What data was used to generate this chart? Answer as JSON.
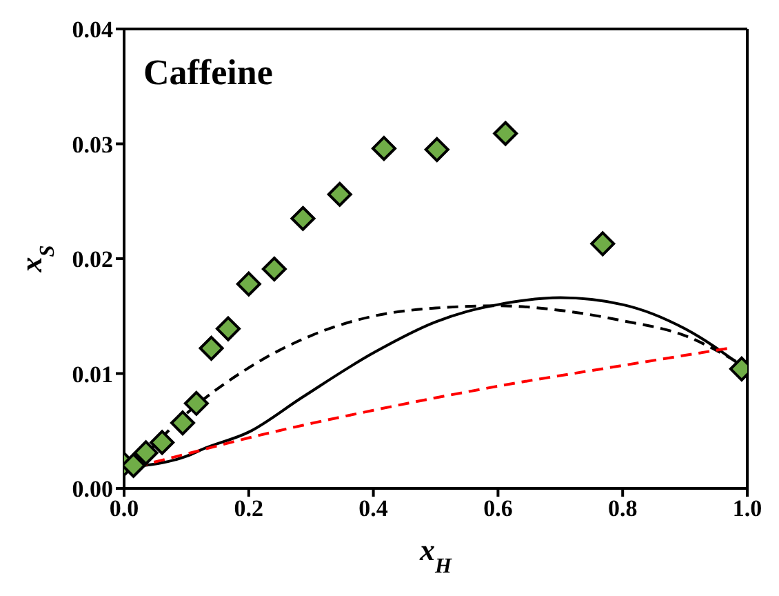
{
  "chart_data": {
    "type": "scatter",
    "annotations": [
      "Caffeine"
    ],
    "xlabel": "x$_{H}$",
    "ylabel": "x$_{S}$",
    "xlim": [
      0,
      1
    ],
    "xticks": [
      {
        "value": 0,
        "label": "0.0"
      },
      {
        "value": 0.2,
        "label": "0.2"
      },
      {
        "value": 0.4,
        "label": "0.4"
      },
      {
        "value": 0.6,
        "label": "0.6"
      },
      {
        "value": 0.8,
        "label": "0.8"
      },
      {
        "value": 1,
        "label": "1.0"
      }
    ],
    "ylim": [
      0,
      0.04
    ],
    "yticks": [
      {
        "value": 0,
        "label": "0.00"
      },
      {
        "value": 0.01,
        "label": "0.01"
      },
      {
        "value": 0.02,
        "label": "0.02"
      },
      {
        "value": 0.03,
        "label": "0.03"
      },
      {
        "value": 0.04,
        "label": "0.04"
      }
    ],
    "grid": false,
    "series": [
      {
        "color": "#70ad47",
        "marker": "diamond",
        "x": [
          0,
          0.015,
          0.035,
          0.061,
          0.094,
          0.116,
          0.14,
          0.167,
          0.2,
          0.241,
          0.287,
          0.346,
          0.417,
          0.502,
          0.612,
          0.768,
          0.991
        ],
        "values": [
          0.0021,
          0.002,
          0.0031,
          0.004,
          0.0057,
          0.0074,
          0.0122,
          0.0139,
          0.0178,
          0.0191,
          0.0235,
          0.0256,
          0.0296,
          0.0295,
          0.0309,
          0.0213,
          0.0104
        ]
      },
      {
        "type": "line",
        "color": "#000000",
        "line_style": "solid",
        "marker": "none",
        "x": [
          0.02,
          0.1,
          0.13,
          0.2,
          0.285,
          0.4,
          0.5,
          0.55,
          0.6,
          0.7,
          0.8,
          0.9,
          0.99
        ],
        "values": [
          0.0019,
          0.0028,
          0.0035,
          0.0049,
          0.0079,
          0.0118,
          0.0145,
          0.0154,
          0.016,
          0.0166,
          0.016,
          0.0139,
          0.0107
        ]
      },
      {
        "type": "line",
        "color": "#000000",
        "line_style": "dashed",
        "marker": "none",
        "x": [
          0.02,
          0.1,
          0.2,
          0.3,
          0.4,
          0.5,
          0.6,
          0.7,
          0.8,
          0.9,
          0.99
        ],
        "values": [
          0.0021,
          0.0065,
          0.0105,
          0.0133,
          0.015,
          0.0157,
          0.0159,
          0.0155,
          0.0146,
          0.0133,
          0.0108
        ]
      },
      {
        "type": "line",
        "color": "#ff0000",
        "line_style": "dashed",
        "marker": "none",
        "x": [
          0.02,
          0.1,
          0.2,
          0.4,
          0.6,
          0.8,
          0.97
        ],
        "values": [
          0.0019,
          0.003,
          0.0044,
          0.0068,
          0.0089,
          0.0107,
          0.0122
        ]
      }
    ]
  }
}
